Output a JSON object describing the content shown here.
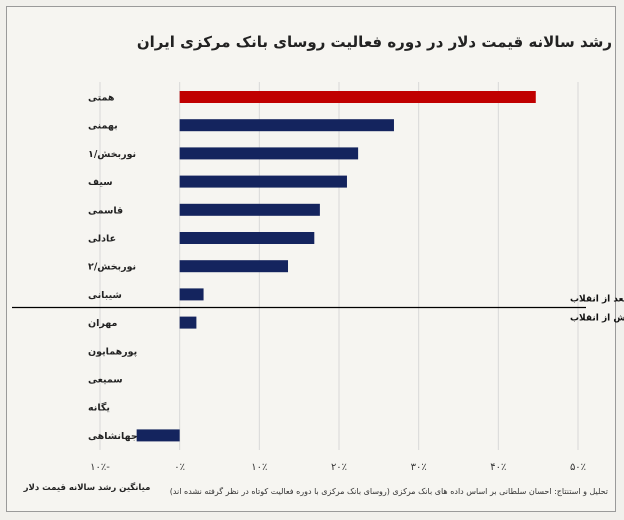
{
  "title": "رشد سالانه قیمت دلار در دوره فعالیت روسای بانک مرکزی ایران",
  "footer_note": "تحلیل و استنتاج: احسان سلطانی بر اساس داده های بانک مرکزی (روسای بانک مرکزی با دوره فعالیت کوتاه در نظر گرفته نشده اند)",
  "x_axis_title": "میانگین رشد سالانه قیمت دلار",
  "divider_labels": {
    "after": "بعد از انقلاب",
    "before": "پیش از انقلاب"
  },
  "colors": {
    "highlight": "#c00000",
    "bar": "#14245e",
    "divider": "#000000"
  },
  "chart_data": {
    "type": "bar",
    "orientation": "horizontal",
    "title": "رشد سالانه قیمت دلار در دوره فعالیت روسای بانک مرکزی ایران",
    "xlabel": "میانگین رشد سالانه قیمت دلار",
    "ylabel": "",
    "xlim": [
      -10,
      50
    ],
    "x_ticks": [
      -10,
      0,
      10,
      20,
      30,
      40,
      50
    ],
    "x_tick_labels": [
      "-۱۰٪",
      "۰٪",
      "۱۰٪",
      "۲۰٪",
      "۳۰٪",
      "۴۰٪",
      "۵۰٪"
    ],
    "grid": true,
    "categories": [
      "همتی",
      "بهمنی",
      "نوربخش/۱",
      "سیف",
      "قاسمی",
      "عادلی",
      "نوربخش/۲",
      "شیبانی",
      "مهران",
      "پورهمایون",
      "سمیعی",
      "یگانه",
      "جهانشاهی"
    ],
    "values": [
      44.7,
      26.9,
      22.4,
      21.0,
      17.6,
      16.9,
      13.6,
      3.0,
      2.1,
      0,
      0,
      0,
      -5.4
    ],
    "highlight_index": 0,
    "divider_after_index": 7
  }
}
